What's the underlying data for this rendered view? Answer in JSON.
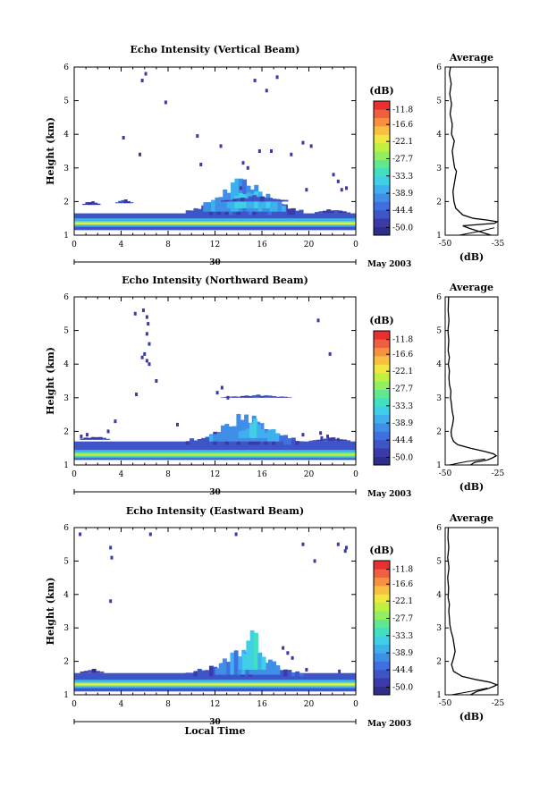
{
  "chart_data": [
    {
      "type": "heatmap",
      "title": "Echo Intensity (Vertical Beam)",
      "ylabel": "Height (km)",
      "x_ticks": [
        "0",
        "4",
        "8",
        "12",
        "16",
        "20",
        "0"
      ],
      "xlim": [
        0,
        24
      ],
      "ylim": [
        1,
        6
      ],
      "y_ticks": [
        "1",
        "2",
        "3",
        "4",
        "5",
        "6"
      ],
      "date_label": "30",
      "month_label": "May 2003",
      "colorbar_unit": "(dB)",
      "colorbar_ticks": [
        "-11.8",
        "-16.6",
        "-22.1",
        "-27.7",
        "-33.3",
        "-38.9",
        "-44.4",
        "-50.0"
      ],
      "colorbar_range": [
        -52.5,
        -9.0
      ],
      "layers": [
        {
          "t0": 0,
          "t1": 24,
          "h0": 1.15,
          "h1": 1.65,
          "level": -47
        },
        {
          "t0": 0,
          "t1": 24,
          "h0": 1.25,
          "h1": 1.5,
          "level": -38
        },
        {
          "t0": 0,
          "t1": 24,
          "h0": 1.3,
          "h1": 1.42,
          "level": -30
        },
        {
          "t0": 0,
          "t1": 24,
          "h0": 1.32,
          "h1": 1.38,
          "level": -22
        }
      ],
      "clusters": [
        {
          "t0": 9.5,
          "t1": 19.5,
          "h0": 1.6,
          "h1": 2.4,
          "level": -46
        },
        {
          "t0": 11,
          "t1": 18,
          "h0": 1.7,
          "h1": 2.9,
          "level": -40
        },
        {
          "t0": 13,
          "t1": 17,
          "h0": 1.8,
          "h1": 2.6,
          "level": -36
        },
        {
          "t0": 0.7,
          "t1": 2.2,
          "h0": 1.9,
          "h1": 2.05,
          "level": -48
        },
        {
          "t0": 3.5,
          "t1": 5,
          "h0": 1.95,
          "h1": 2.1,
          "level": -48
        },
        {
          "t0": 12.5,
          "t1": 18.2,
          "h0": 2.0,
          "h1": 2.2,
          "level": -47
        },
        {
          "t0": 20.5,
          "t1": 23.5,
          "h0": 1.65,
          "h1": 1.8,
          "level": -48
        }
      ],
      "speckles": [
        [
          5.8,
          5.6
        ],
        [
          6.1,
          5.8
        ],
        [
          5.6,
          3.4
        ],
        [
          12.5,
          3.65
        ],
        [
          15.8,
          3.5
        ],
        [
          10.5,
          3.95
        ],
        [
          14.2,
          2.4
        ],
        [
          16.8,
          3.5
        ],
        [
          18.5,
          3.4
        ],
        [
          14.4,
          3.15
        ],
        [
          19.8,
          2.35
        ],
        [
          22.1,
          2.8
        ],
        [
          22.5,
          2.6
        ],
        [
          4.2,
          3.9
        ],
        [
          16.4,
          5.3
        ],
        [
          17.3,
          5.7
        ],
        [
          15.4,
          5.6
        ],
        [
          19.5,
          3.75
        ],
        [
          10.8,
          3.1
        ],
        [
          14.8,
          3.0
        ],
        [
          22.8,
          2.35
        ],
        [
          23.2,
          2.4
        ],
        [
          7.8,
          4.95
        ],
        [
          20.2,
          3.65
        ]
      ],
      "avg_title": "Average",
      "avg_xlabel": "(dB)",
      "avg_x_ticks": [
        "-50",
        "-35"
      ],
      "avg_xlim": [
        -50,
        -35
      ],
      "avg_profile": [
        [
          1.0,
          -37
        ],
        [
          1.1,
          -40
        ],
        [
          1.2,
          -43
        ],
        [
          1.28,
          -45
        ],
        [
          1.35,
          -36
        ],
        [
          1.4,
          -35.2
        ],
        [
          1.45,
          -38
        ],
        [
          1.5,
          -42
        ],
        [
          1.6,
          -45
        ],
        [
          1.8,
          -47
        ],
        [
          2.0,
          -47.5
        ],
        [
          2.3,
          -47.8
        ],
        [
          2.6,
          -47.3
        ],
        [
          2.9,
          -46.8
        ],
        [
          3.0,
          -47.3
        ],
        [
          3.2,
          -47.6
        ],
        [
          3.5,
          -48
        ],
        [
          3.8,
          -47.4
        ],
        [
          4.0,
          -48.2
        ],
        [
          4.3,
          -48
        ],
        [
          4.6,
          -48.6
        ],
        [
          4.9,
          -48.2
        ],
        [
          5.2,
          -48.7
        ],
        [
          5.5,
          -48.3
        ],
        [
          5.8,
          -48.8
        ],
        [
          6.0,
          -48.5
        ]
      ],
      "avg_line2": [
        [
          1.0,
          -46
        ],
        [
          1.12,
          -40
        ],
        [
          1.22,
          -36
        ]
      ]
    },
    {
      "type": "heatmap",
      "title": "Echo Intensity (Northward Beam)",
      "ylabel": "Height (km)",
      "x_ticks": [
        "0",
        "4",
        "8",
        "12",
        "16",
        "20",
        "0"
      ],
      "xlim": [
        0,
        24
      ],
      "ylim": [
        1,
        6
      ],
      "y_ticks": [
        "1",
        "2",
        "3",
        "4",
        "5",
        "6"
      ],
      "date_label": "30",
      "month_label": "May 2003",
      "colorbar_unit": "(dB)",
      "colorbar_ticks": [
        "-11.8",
        "-16.6",
        "-22.1",
        "-27.7",
        "-33.3",
        "-38.9",
        "-44.4",
        "-50.0"
      ],
      "colorbar_range": [
        -52.5,
        -9.0
      ],
      "layers": [
        {
          "t0": 0,
          "t1": 24,
          "h0": 1.15,
          "h1": 1.7,
          "level": -47
        },
        {
          "t0": 0,
          "t1": 24,
          "h0": 1.2,
          "h1": 1.45,
          "level": -38
        },
        {
          "t0": 0,
          "t1": 24,
          "h0": 1.25,
          "h1": 1.38,
          "level": -30
        },
        {
          "t0": 0,
          "t1": 24,
          "h0": 1.28,
          "h1": 1.33,
          "level": -24
        }
      ],
      "clusters": [
        {
          "t0": 9.5,
          "t1": 19.5,
          "h0": 1.6,
          "h1": 2.3,
          "level": -46
        },
        {
          "t0": 11.5,
          "t1": 17.8,
          "h0": 1.7,
          "h1": 2.7,
          "level": -40
        },
        {
          "t0": 14,
          "t1": 16.5,
          "h0": 1.8,
          "h1": 2.5,
          "level": -36
        },
        {
          "t0": 12.5,
          "t1": 18.5,
          "h0": 3.0,
          "h1": 3.1,
          "level": -47
        },
        {
          "t0": 0.5,
          "t1": 3,
          "h0": 1.75,
          "h1": 1.9,
          "level": -48
        },
        {
          "t0": 20,
          "t1": 23.5,
          "h0": 1.7,
          "h1": 1.85,
          "level": -48
        }
      ],
      "speckles": [
        [
          5.2,
          5.5
        ],
        [
          5.9,
          5.6
        ],
        [
          6.2,
          5.4
        ],
        [
          6.3,
          5.2
        ],
        [
          6.2,
          4.9
        ],
        [
          6.4,
          4.6
        ],
        [
          6.0,
          4.3
        ],
        [
          5.8,
          4.2
        ],
        [
          6.2,
          4.1
        ],
        [
          6.4,
          4.0
        ],
        [
          5.3,
          3.1
        ],
        [
          7.0,
          3.5
        ],
        [
          12.6,
          3.3
        ],
        [
          13.1,
          3.0
        ],
        [
          0.6,
          1.85
        ],
        [
          1.1,
          1.9
        ],
        [
          2.9,
          2.0
        ],
        [
          3.5,
          2.3
        ],
        [
          19.5,
          1.9
        ],
        [
          21.1,
          1.8
        ],
        [
          21.6,
          1.85
        ],
        [
          22.5,
          1.75
        ],
        [
          21.0,
          1.95
        ],
        [
          21.8,
          4.3
        ],
        [
          20.8,
          5.3
        ],
        [
          12.2,
          3.15
        ],
        [
          8.8,
          2.2
        ]
      ],
      "avg_title": "Average",
      "avg_xlabel": "(dB)",
      "avg_x_ticks": [
        "-50",
        "-25"
      ],
      "avg_xlim": [
        -50,
        -25
      ],
      "avg_profile": [
        [
          1.0,
          -38
        ],
        [
          1.08,
          -36
        ],
        [
          1.15,
          -30
        ],
        [
          1.2,
          -28
        ],
        [
          1.27,
          -25.8
        ],
        [
          1.33,
          -27
        ],
        [
          1.4,
          -31
        ],
        [
          1.5,
          -38
        ],
        [
          1.6,
          -44
        ],
        [
          1.7,
          -46
        ],
        [
          1.85,
          -47
        ],
        [
          2.0,
          -47.2
        ],
        [
          2.2,
          -46.5
        ],
        [
          2.4,
          -46
        ],
        [
          2.6,
          -46.7
        ],
        [
          2.8,
          -47
        ],
        [
          3.0,
          -47.5
        ],
        [
          3.2,
          -47.3
        ],
        [
          3.4,
          -48
        ],
        [
          3.6,
          -48.2
        ],
        [
          3.8,
          -48
        ],
        [
          4.0,
          -48.5
        ],
        [
          4.2,
          -48
        ],
        [
          4.4,
          -48.6
        ],
        [
          4.7,
          -48.3
        ],
        [
          5.0,
          -48.7
        ],
        [
          5.3,
          -48.2
        ],
        [
          5.6,
          -48.6
        ],
        [
          6.0,
          -48.4
        ]
      ],
      "avg_line2": [
        [
          1.0,
          -48
        ],
        [
          1.1,
          -40
        ],
        [
          1.18,
          -31
        ]
      ]
    },
    {
      "type": "heatmap",
      "title": "Echo Intensity (Eastward Beam)",
      "ylabel": "Height (km)",
      "xlabel": "Local Time",
      "x_ticks": [
        "0",
        "4",
        "8",
        "12",
        "16",
        "20",
        "0"
      ],
      "xlim": [
        0,
        24
      ],
      "ylim": [
        1,
        6
      ],
      "y_ticks": [
        "1",
        "2",
        "3",
        "4",
        "5",
        "6"
      ],
      "date_label": "30",
      "month_label": "May 2003",
      "colorbar_unit": "(dB)",
      "colorbar_ticks": [
        "-11.8",
        "-16.6",
        "-22.1",
        "-27.7",
        "-33.3",
        "-38.9",
        "-44.4",
        "-50.0"
      ],
      "colorbar_range": [
        -52.5,
        -9.0
      ],
      "layers": [
        {
          "t0": 0,
          "t1": 24,
          "h0": 1.1,
          "h1": 1.65,
          "level": -47
        },
        {
          "t0": 0,
          "t1": 24,
          "h0": 1.2,
          "h1": 1.45,
          "level": -38
        },
        {
          "t0": 0,
          "t1": 24,
          "h0": 1.25,
          "h1": 1.38,
          "level": -30
        },
        {
          "t0": 0,
          "t1": 24,
          "h0": 1.28,
          "h1": 1.34,
          "level": -22
        }
      ],
      "clusters": [
        {
          "t0": 9.5,
          "t1": 19.5,
          "h0": 1.55,
          "h1": 2.2,
          "level": -46
        },
        {
          "t0": 12,
          "t1": 17.5,
          "h0": 1.6,
          "h1": 2.8,
          "level": -40
        },
        {
          "t0": 14,
          "t1": 16.3,
          "h0": 1.75,
          "h1": 3.2,
          "level": -35
        },
        {
          "t0": 0.5,
          "t1": 2.5,
          "h0": 1.65,
          "h1": 1.8,
          "level": -48
        }
      ],
      "speckles": [
        [
          0.5,
          5.8
        ],
        [
          3.1,
          5.4
        ],
        [
          3.2,
          5.1
        ],
        [
          6.5,
          5.8
        ],
        [
          13.8,
          5.8
        ],
        [
          19.5,
          5.5
        ],
        [
          20.5,
          5.0
        ],
        [
          22.5,
          5.5
        ],
        [
          23.1,
          5.3
        ],
        [
          23.2,
          5.4
        ],
        [
          3.1,
          3.8
        ],
        [
          17.8,
          2.4
        ],
        [
          18.2,
          2.25
        ],
        [
          18.6,
          2.1
        ],
        [
          19.8,
          1.75
        ],
        [
          22.6,
          1.7
        ]
      ],
      "avg_title": "Average",
      "avg_xlabel": "(dB)",
      "avg_x_ticks": [
        "-50",
        "-25"
      ],
      "avg_xlim": [
        -50,
        -25
      ],
      "avg_profile": [
        [
          1.0,
          -38
        ],
        [
          1.1,
          -35
        ],
        [
          1.18,
          -30
        ],
        [
          1.25,
          -27
        ],
        [
          1.3,
          -25.5
        ],
        [
          1.38,
          -29
        ],
        [
          1.45,
          -35
        ],
        [
          1.55,
          -42
        ],
        [
          1.7,
          -46
        ],
        [
          1.9,
          -47
        ],
        [
          2.1,
          -46
        ],
        [
          2.3,
          -45.3
        ],
        [
          2.5,
          -45.8
        ],
        [
          2.7,
          -46.3
        ],
        [
          2.9,
          -47.2
        ],
        [
          3.1,
          -47.8
        ],
        [
          3.3,
          -48
        ],
        [
          3.5,
          -48.3
        ],
        [
          3.7,
          -48
        ],
        [
          3.9,
          -48.6
        ],
        [
          4.2,
          -48.4
        ],
        [
          4.5,
          -48.8
        ],
        [
          4.8,
          -48.2
        ],
        [
          5.1,
          -48.8
        ],
        [
          5.4,
          -48.3
        ],
        [
          5.7,
          -48.7
        ],
        [
          6.0,
          -48.5
        ]
      ],
      "avg_line2": [
        [
          1.0,
          -47
        ],
        [
          1.1,
          -38
        ],
        [
          1.2,
          -30
        ]
      ]
    }
  ],
  "colors": {
    "scale": [
      "#2e2e8a",
      "#3a3aa8",
      "#3e55c8",
      "#3f6fe0",
      "#3f8fe8",
      "#3fb0ee",
      "#3fd0e8",
      "#40e0c0",
      "#60e890",
      "#90f060",
      "#c0f040",
      "#f0e840",
      "#f8c040",
      "#f89040",
      "#f06040",
      "#e83030"
    ]
  }
}
